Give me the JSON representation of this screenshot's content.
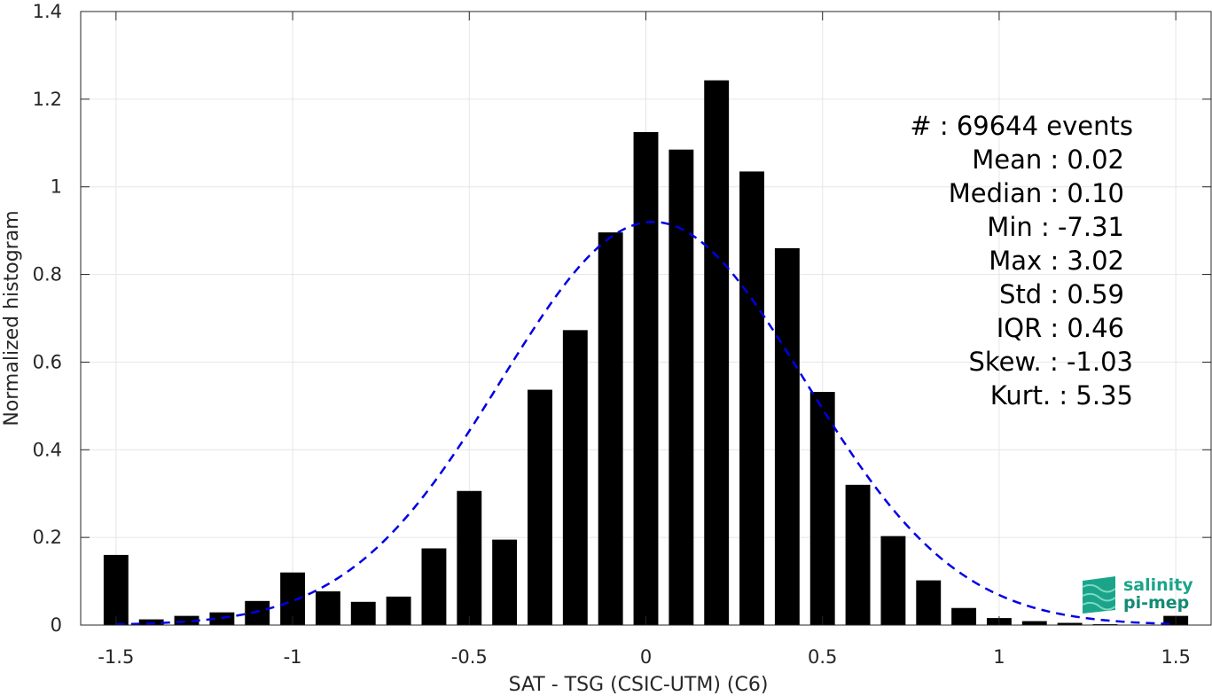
{
  "chart_data": {
    "type": "bar",
    "xlabel": "SAT - TSG (CSIC-UTM) (C6)",
    "ylabel": "Normalized histogram",
    "xlim": [
      -1.6,
      1.6
    ],
    "ylim": [
      0,
      1.4
    ],
    "xticks": [
      -1.5,
      -1,
      -0.5,
      0,
      0.5,
      1,
      1.5
    ],
    "xtick_labels": [
      "-1.5",
      "-1",
      "-0.5",
      "0",
      "0.5",
      "1",
      "1.5"
    ],
    "yticks": [
      0,
      0.2,
      0.4,
      0.6,
      0.8,
      1,
      1.2,
      1.4
    ],
    "ytick_labels": [
      "0",
      "0.2",
      "0.4",
      "0.6",
      "0.8",
      "1",
      "1.2",
      "1.4"
    ],
    "grid": true,
    "bar_width": 0.07,
    "bar_color": "#000000",
    "x": [
      -1.5,
      -1.4,
      -1.3,
      -1.2,
      -1.1,
      -1.0,
      -0.9,
      -0.8,
      -0.7,
      -0.6,
      -0.5,
      -0.4,
      -0.3,
      -0.2,
      -0.1,
      0.0,
      0.1,
      0.2,
      0.3,
      0.4,
      0.5,
      0.6,
      0.7,
      0.8,
      0.9,
      1.0,
      1.1,
      1.2,
      1.3,
      1.4,
      1.5
    ],
    "values": [
      0.16,
      0.013,
      0.021,
      0.029,
      0.055,
      0.12,
      0.077,
      0.053,
      0.065,
      0.175,
      0.306,
      0.195,
      0.537,
      0.673,
      0.896,
      1.125,
      1.085,
      1.243,
      1.035,
      0.86,
      0.532,
      0.32,
      0.203,
      0.102,
      0.039,
      0.016,
      0.009,
      0.005,
      0.002,
      0.001,
      0.021
    ],
    "fit_curve": {
      "style": "dashed",
      "color": "#0000e6",
      "mean": 0.02,
      "std": 0.43,
      "peak": 0.92
    },
    "annotations": [
      "#  : 69644 events",
      "Mean : 0.02",
      "Median : 0.10",
      "Min : -7.31",
      "Max : 3.02",
      "Std : 0.59",
      "IQR : 0.46",
      "Skew. : -1.03",
      "Kurt. : 5.35"
    ]
  },
  "logo": {
    "line1": "salinity",
    "line2": "pi-mep",
    "color": "#1aa58a"
  }
}
